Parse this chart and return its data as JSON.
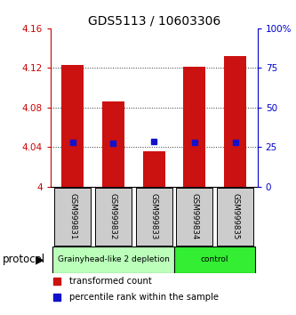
{
  "title": "GDS5113 / 10603306",
  "samples": [
    "GSM999831",
    "GSM999832",
    "GSM999833",
    "GSM999834",
    "GSM999835"
  ],
  "bar_bottoms": [
    4.0,
    4.0,
    4.0,
    4.0,
    4.0
  ],
  "bar_tops": [
    4.123,
    4.086,
    4.036,
    4.121,
    4.132
  ],
  "percentile_values": [
    4.045,
    4.044,
    4.046,
    4.045,
    4.045
  ],
  "ylim_left": [
    4.0,
    4.16
  ],
  "yticks_left": [
    4.0,
    4.04,
    4.08,
    4.12,
    4.16
  ],
  "ytick_labels_left": [
    "4",
    "4.04",
    "4.08",
    "4.12",
    "4.16"
  ],
  "yticks_right_pct": [
    "0",
    "25",
    "50",
    "75",
    "100%"
  ],
  "yticks_right_vals": [
    4.0,
    4.04,
    4.08,
    4.12,
    4.16
  ],
  "bar_color": "#cc1111",
  "percentile_color": "#1111cc",
  "bar_width": 0.55,
  "groups": [
    {
      "label": "Grainyhead-like 2 depletion",
      "indices": [
        0,
        1,
        2
      ],
      "color": "#bbffbb"
    },
    {
      "label": "control",
      "indices": [
        3,
        4
      ],
      "color": "#33ee33"
    }
  ],
  "group_label": "protocol",
  "plot_bg": "#ffffff",
  "grid_color": "#333333",
  "tick_color_left": "#cc0000",
  "tick_color_right": "#0000cc",
  "sample_box_color": "#cccccc",
  "legend_items": [
    {
      "label": "transformed count",
      "color": "#cc1111"
    },
    {
      "label": "percentile rank within the sample",
      "color": "#1111cc"
    }
  ]
}
